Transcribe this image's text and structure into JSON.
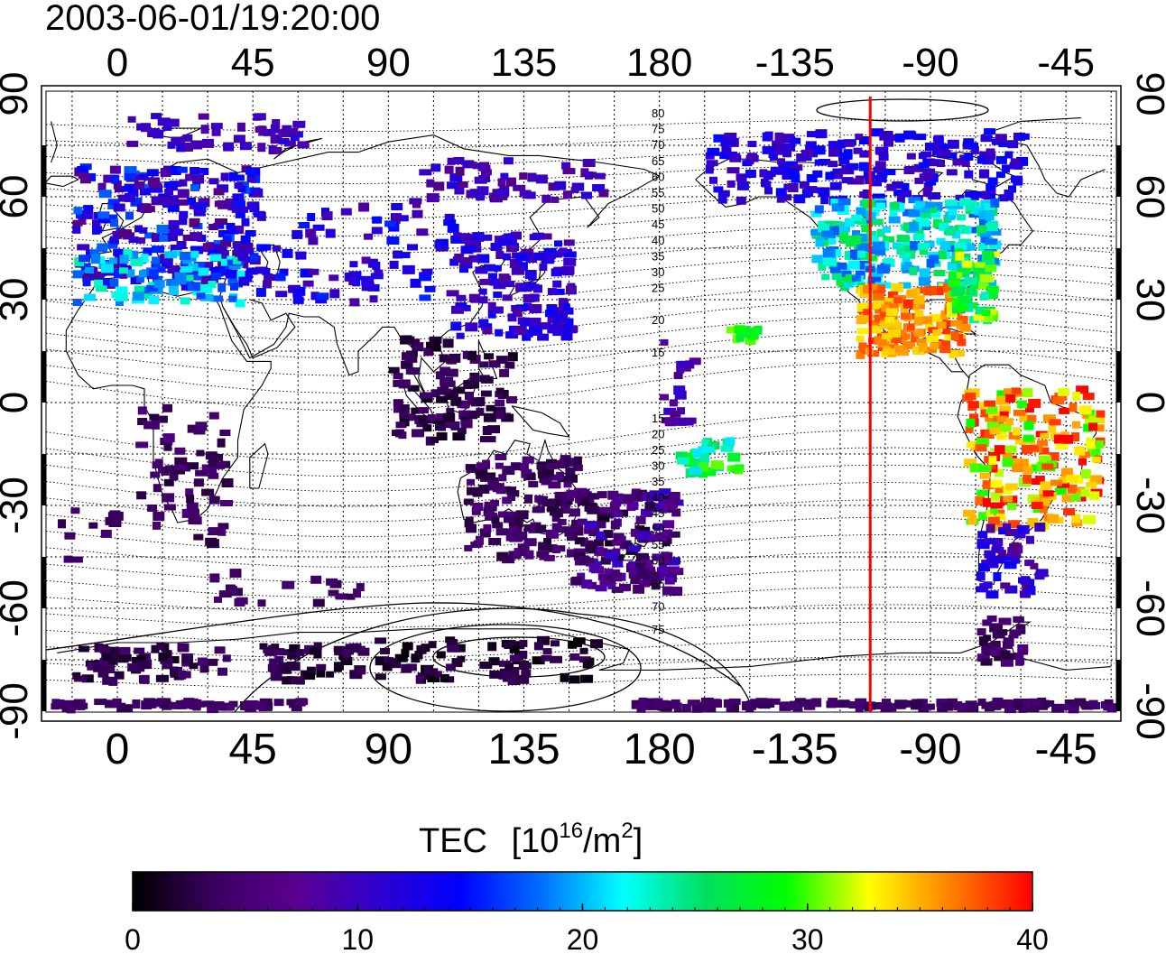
{
  "timestamp": "2003-06-01/19:20:00",
  "map": {
    "lon_ticks_top": [
      "0",
      "45",
      "90",
      "135",
      "180",
      "-135",
      "-90",
      "-45"
    ],
    "lon_ticks_bottom": [
      "0",
      "45",
      "90",
      "135",
      "180",
      "-135",
      "-90",
      "-45"
    ],
    "lat_ticks_left": [
      "90",
      "60",
      "30",
      "0",
      "-30",
      "-60",
      "-90"
    ],
    "lat_ticks_right": [
      "90",
      "60",
      "30",
      "0",
      "-30",
      "-60",
      "-90"
    ],
    "contour_labels_north": [
      "80",
      "75",
      "70",
      "65",
      "60",
      "55",
      "50",
      "45",
      "40",
      "35",
      "30",
      "25",
      "20",
      "15"
    ],
    "contour_labels_south": [
      "15",
      "20",
      "25",
      "30",
      "35",
      "40",
      "45",
      "50",
      "55",
      "60",
      "65",
      "70",
      "75"
    ],
    "marker_color": "#ff0000",
    "marker_lon": -110
  },
  "colorbar": {
    "title": "TEC",
    "unit_base": "[10",
    "unit_exp1": "16",
    "unit_mid": "/m",
    "unit_exp2": "2",
    "unit_end": "]",
    "tick_labels": [
      "0",
      "10",
      "20",
      "30",
      "40"
    ],
    "range": [
      0,
      40
    ],
    "colors": [
      "#000000",
      "#3a0060",
      "#5a0090",
      "#3000d0",
      "#0000ff",
      "#0070ff",
      "#00ffff",
      "#00e060",
      "#00ff00",
      "#ffff00",
      "#ff8000",
      "#ff0000"
    ]
  }
}
